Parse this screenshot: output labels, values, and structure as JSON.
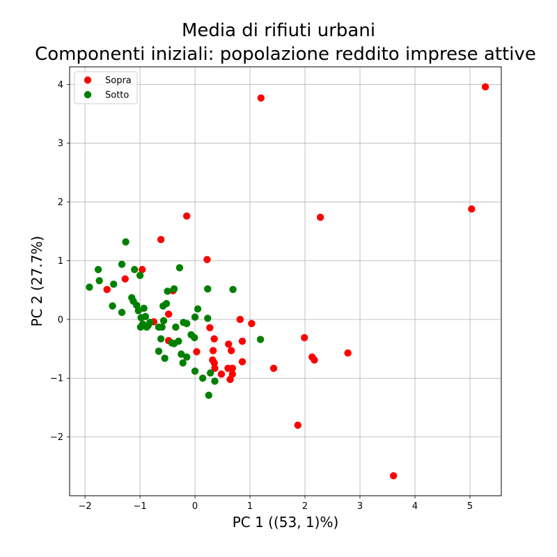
{
  "chart_data": {
    "type": "scatter",
    "title": "Media di rifiuti urbani",
    "subtitle": "Componenti iniziali: popolazione reddito imprese attive",
    "xlabel": "PC 1 ((53, 1)%)",
    "ylabel": "PC 2 (27.7%)",
    "xlim": [
      -2.28,
      5.57
    ],
    "ylim": [
      -3.0,
      4.3
    ],
    "xticks": [
      -2,
      -1,
      0,
      1,
      2,
      3,
      4,
      5
    ],
    "yticks": [
      -2,
      -1,
      0,
      1,
      2,
      3,
      4
    ],
    "grid": true,
    "legend_position": "top-left",
    "series": [
      {
        "name": "Sopra",
        "color": "#ff0000",
        "points": [
          [
            5.28,
            3.96
          ],
          [
            1.2,
            3.77
          ],
          [
            5.03,
            1.88
          ],
          [
            2.28,
            1.74
          ],
          [
            -0.15,
            1.76
          ],
          [
            -0.62,
            1.36
          ],
          [
            0.22,
            1.02
          ],
          [
            -0.96,
            0.85
          ],
          [
            -1.27,
            0.69
          ],
          [
            -1.6,
            0.51
          ],
          [
            -0.4,
            0.49
          ],
          [
            -0.48,
            0.09
          ],
          [
            -0.75,
            -0.04
          ],
          [
            0.27,
            -0.14
          ],
          [
            0.82,
            0.0
          ],
          [
            1.03,
            -0.07
          ],
          [
            1.99,
            -0.31
          ],
          [
            0.35,
            -0.33
          ],
          [
            0.86,
            -0.37
          ],
          [
            0.61,
            -0.42
          ],
          [
            0.03,
            -0.55
          ],
          [
            0.33,
            -0.53
          ],
          [
            0.66,
            -0.53
          ],
          [
            2.13,
            -0.64
          ],
          [
            2.17,
            -0.69
          ],
          [
            2.78,
            -0.57
          ],
          [
            0.32,
            -0.69
          ],
          [
            0.35,
            -0.74
          ],
          [
            0.86,
            -0.72
          ],
          [
            -0.48,
            -0.36
          ],
          [
            0.36,
            -0.83
          ],
          [
            0.6,
            -0.83
          ],
          [
            0.68,
            -0.83
          ],
          [
            1.43,
            -0.83
          ],
          [
            0.48,
            -0.93
          ],
          [
            0.68,
            -0.93
          ],
          [
            0.64,
            -1.02
          ],
          [
            1.87,
            -1.8
          ],
          [
            3.61,
            -2.66
          ]
        ]
      },
      {
        "name": "Sotto",
        "color": "#008000",
        "points": [
          [
            -1.26,
            1.32
          ],
          [
            -1.76,
            0.85
          ],
          [
            -1.33,
            0.94
          ],
          [
            -1.1,
            0.85
          ],
          [
            -0.28,
            0.88
          ],
          [
            -1.0,
            0.75
          ],
          [
            -1.74,
            0.66
          ],
          [
            -1.92,
            0.55
          ],
          [
            -1.48,
            0.6
          ],
          [
            0.23,
            0.52
          ],
          [
            0.69,
            0.51
          ],
          [
            -0.38,
            0.52
          ],
          [
            -0.5,
            0.48
          ],
          [
            -1.15,
            0.37
          ],
          [
            -1.12,
            0.31
          ],
          [
            -1.06,
            0.24
          ],
          [
            -1.5,
            0.23
          ],
          [
            -0.58,
            0.23
          ],
          [
            -0.52,
            0.27
          ],
          [
            -0.93,
            0.19
          ],
          [
            0.05,
            0.18
          ],
          [
            -1.33,
            0.12
          ],
          [
            -1.03,
            0.15
          ],
          [
            -0.98,
            0.03
          ],
          [
            -0.9,
            0.05
          ],
          [
            -0.57,
            -0.02
          ],
          [
            0.0,
            0.04
          ],
          [
            0.23,
            0.02
          ],
          [
            -0.95,
            -0.08
          ],
          [
            -0.88,
            -0.13
          ],
          [
            -0.82,
            -0.05
          ],
          [
            -0.66,
            -0.13
          ],
          [
            -0.6,
            -0.13
          ],
          [
            -0.35,
            -0.13
          ],
          [
            -0.21,
            -0.05
          ],
          [
            -0.15,
            -0.07
          ],
          [
            -0.99,
            -0.13
          ],
          [
            -0.85,
            -0.1
          ],
          [
            1.19,
            -0.34
          ],
          [
            -0.07,
            -0.26
          ],
          [
            -0.01,
            -0.31
          ],
          [
            -0.62,
            -0.33
          ],
          [
            -0.3,
            -0.37
          ],
          [
            -0.42,
            -0.4
          ],
          [
            -0.38,
            -0.41
          ],
          [
            -0.66,
            -0.54
          ],
          [
            -0.55,
            -0.66
          ],
          [
            -0.25,
            -0.59
          ],
          [
            -0.15,
            -0.64
          ],
          [
            -0.22,
            -0.74
          ],
          [
            0.0,
            -0.88
          ],
          [
            0.28,
            -0.91
          ],
          [
            0.14,
            -1.0
          ],
          [
            0.36,
            -1.05
          ],
          [
            0.25,
            -1.29
          ]
        ]
      }
    ]
  }
}
